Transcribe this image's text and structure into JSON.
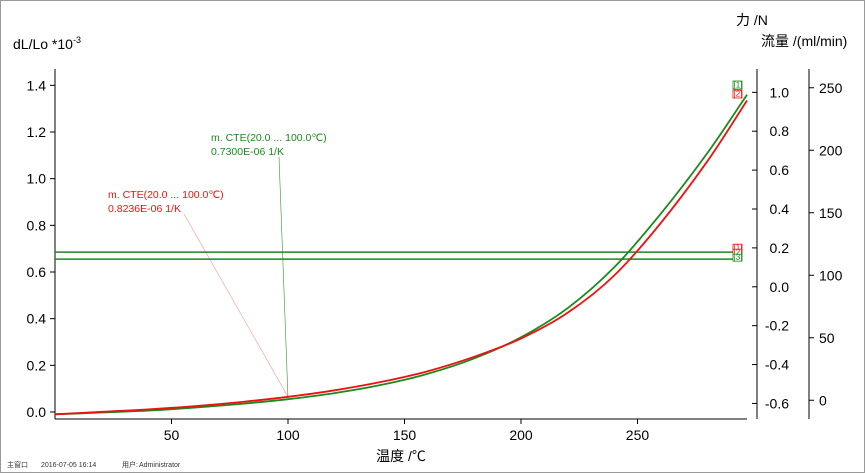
{
  "window": {
    "status_bar": {
      "view_label": "主窗口",
      "datetime": "2016-07-05 16:14",
      "user_label": "用户:",
      "user": "Administrator"
    }
  },
  "chart_data": {
    "type": "line",
    "grid": false,
    "xlabel": "温度 /℃",
    "xlim": [
      0,
      297
    ],
    "x_ticks": [
      50,
      100,
      150,
      200,
      250
    ],
    "axes": {
      "left": {
        "label": "dL/Lo *10",
        "label_exp": "-3",
        "lim": [
          -0.03,
          1.47
        ],
        "ticks": [
          0.0,
          0.2,
          0.4,
          0.6,
          0.8,
          1.0,
          1.2,
          1.4
        ],
        "decimals": 1
      },
      "force": {
        "label": "力 /N",
        "lim": [
          -0.68,
          1.12
        ],
        "ticks": [
          -0.6,
          -0.4,
          -0.2,
          0.0,
          0.2,
          0.4,
          0.6,
          0.8,
          1.0
        ],
        "decimals": 1
      },
      "flow": {
        "label": "流量 /(ml/min)",
        "lim": [
          -15,
          265
        ],
        "ticks": [
          0,
          50,
          100,
          150,
          200,
          250
        ],
        "decimals": 0
      }
    },
    "series": [
      {
        "color": "#1a8a1a",
        "x": [
          0,
          20,
          40,
          60,
          80,
          100,
          120,
          140,
          160,
          180,
          200,
          220,
          240,
          260,
          280,
          297
        ],
        "y": [
          -0.01,
          -0.002,
          0.006,
          0.019,
          0.035,
          0.055,
          0.081,
          0.116,
          0.164,
          0.23,
          0.32,
          0.445,
          0.62,
          0.85,
          1.11,
          1.36
        ]
      },
      {
        "color": "#ee1111",
        "x": [
          0,
          20,
          40,
          60,
          80,
          100,
          120,
          140,
          160,
          180,
          200,
          220,
          240,
          260,
          280,
          297
        ],
        "y": [
          -0.01,
          0.001,
          0.011,
          0.025,
          0.043,
          0.065,
          0.093,
          0.129,
          0.175,
          0.237,
          0.315,
          0.425,
          0.585,
          0.81,
          1.075,
          1.335
        ]
      }
    ],
    "hlines": [
      {
        "color": "#1a8a1a",
        "y": 0.685
      },
      {
        "color": "#1a8a1a",
        "y": 0.655
      }
    ],
    "curve_markers": [
      "[1]",
      "[2]"
    ],
    "line_markers": [
      "[1]",
      "[2]",
      "[3]"
    ],
    "annotations": [
      {
        "color": "#1a8a1a",
        "line1": "m. CTE(20.0 ... 100.0℃)",
        "line2": "0.7300E-06 1/K",
        "point_x": 100,
        "point_y": 0.06
      },
      {
        "color": "#ee1111",
        "line1": "m. CTE(20.0 ... 100.0℃)",
        "line2": "0.8236E-06 1/K",
        "point_x": 100,
        "point_y": 0.065
      }
    ]
  }
}
